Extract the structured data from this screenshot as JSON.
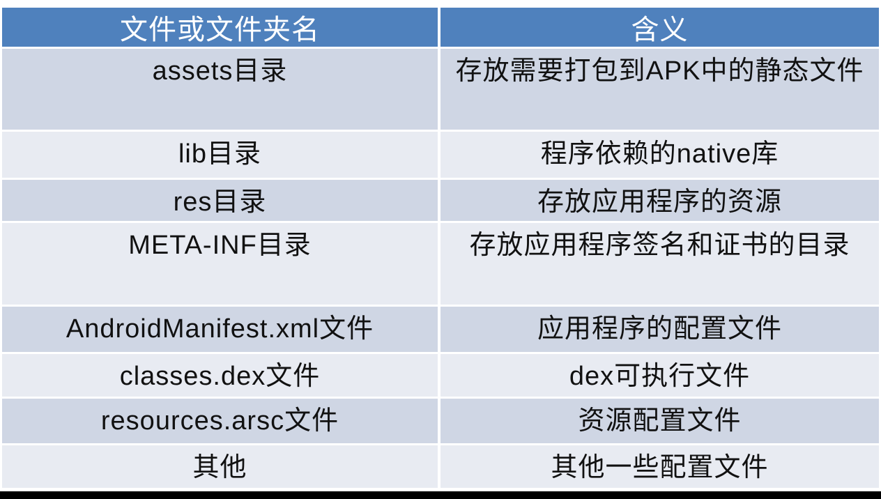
{
  "table": {
    "header": {
      "file_or_folder_col": "文件或文件夹名",
      "meaning_col": "含义"
    },
    "rows": [
      {
        "name": "assets目录",
        "meaning": "存放需要打包到APK中的静态文件"
      },
      {
        "name": "lib目录",
        "meaning": "程序依赖的native库"
      },
      {
        "name": "res目录",
        "meaning": "存放应用程序的资源"
      },
      {
        "name": "META-INF目录",
        "meaning": "存放应用程序签名和证书的目录"
      },
      {
        "name": "AndroidManifest.xml文件",
        "meaning": "应用程序的配置文件"
      },
      {
        "name": "classes.dex文件",
        "meaning": "dex可执行文件"
      },
      {
        "name": "resources.arsc文件",
        "meaning": "资源配置文件"
      },
      {
        "name": "其他",
        "meaning": "其他一些配置文件"
      }
    ],
    "colors": {
      "header-bg": "#4f81bd",
      "header-text": "#ffffff",
      "band-dark": "#cfd6e4",
      "band-light": "#e8ebf2",
      "body-text": "#111111",
      "bottom-bar": "#000000"
    }
  }
}
